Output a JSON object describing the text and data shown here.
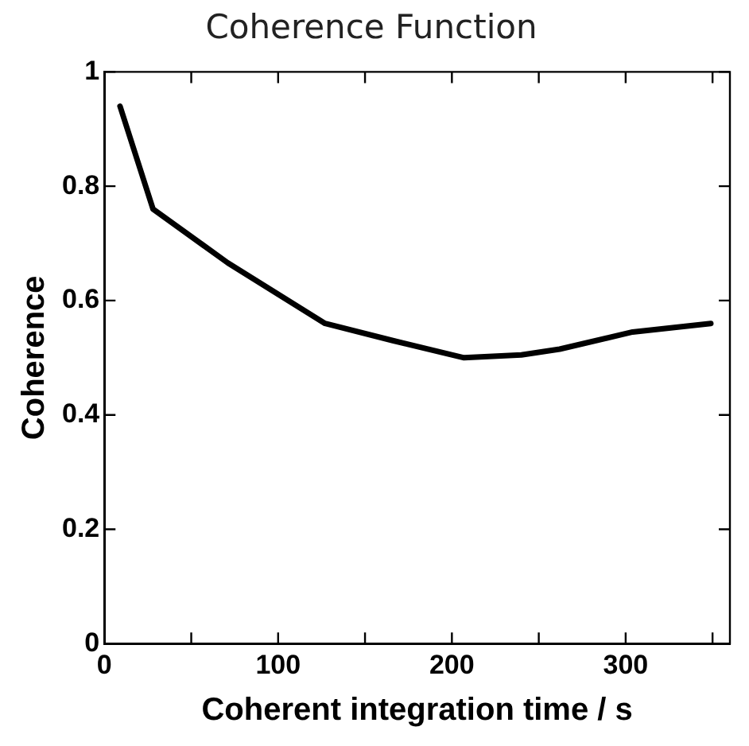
{
  "chart_data": {
    "type": "line",
    "title": "Coherence Function",
    "xlabel": "Coherent integration time / s",
    "ylabel": "Coherence",
    "x": [
      9,
      28,
      71,
      127,
      166,
      207,
      240,
      262,
      304,
      349
    ],
    "series": [
      {
        "color": "#000000",
        "values": [
          0.94,
          0.76,
          0.666,
          0.56,
          0.53,
          0.5,
          0.505,
          0.515,
          0.545,
          0.56
        ]
      }
    ],
    "xlim": [
      0,
      360
    ],
    "xticks": [
      0,
      {
        "value": 50,
        "label": null
      },
      100,
      {
        "value": 150,
        "label": null
      },
      200,
      {
        "value": 250,
        "label": null
      },
      300,
      {
        "value": 350,
        "label": null
      }
    ],
    "ylim": [
      0,
      1
    ],
    "yticks": [
      0,
      0.2,
      0.4,
      0.6,
      0.8,
      1
    ],
    "grid": false,
    "legend": false,
    "marker": "none",
    "line_style": "solid"
  }
}
